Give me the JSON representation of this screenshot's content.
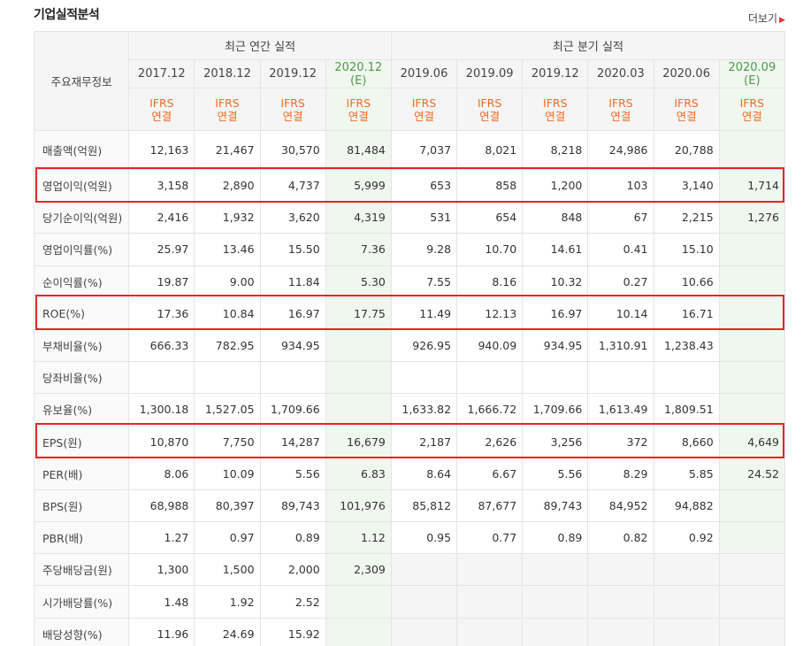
{
  "title": "기업실적분석",
  "more_label": "더보기",
  "table": {
    "key_header": "주요재무정보",
    "group_annual": "최근 연간 실적",
    "group_quarter": "최근 분기 실적",
    "periods": [
      {
        "line1": "2017.12",
        "line2": "",
        "est": false
      },
      {
        "line1": "2018.12",
        "line2": "",
        "est": false
      },
      {
        "line1": "2019.12",
        "line2": "",
        "est": false
      },
      {
        "line1": "2020.12",
        "line2": "(E)",
        "est": true
      },
      {
        "line1": "2019.06",
        "line2": "",
        "est": false
      },
      {
        "line1": "2019.09",
        "line2": "",
        "est": false
      },
      {
        "line1": "2019.12",
        "line2": "",
        "est": false
      },
      {
        "line1": "2020.03",
        "line2": "",
        "est": false
      },
      {
        "line1": "2020.06",
        "line2": "",
        "est": false
      },
      {
        "line1": "2020.09",
        "line2": "(E)",
        "est": true
      }
    ],
    "basis_line1": "IFRS",
    "basis_line2": "연결",
    "rows": [
      {
        "name": "sales",
        "label": "매출액(억원)",
        "highlight": false,
        "values": [
          "12,163",
          "21,467",
          "30,570",
          "81,484",
          "7,037",
          "8,021",
          "8,218",
          "24,986",
          "20,788",
          ""
        ]
      },
      {
        "name": "operating-profit",
        "label": "영업이익(억원)",
        "highlight": true,
        "values": [
          "3,158",
          "2,890",
          "4,737",
          "5,999",
          "653",
          "858",
          "1,200",
          "103",
          "3,140",
          "1,714"
        ]
      },
      {
        "name": "net-income",
        "label": "당기순이익(억원)",
        "highlight": false,
        "values": [
          "2,416",
          "1,932",
          "3,620",
          "4,319",
          "531",
          "654",
          "848",
          "67",
          "2,215",
          "1,276"
        ]
      },
      {
        "name": "operating-margin",
        "label": "영업이익률(%)",
        "highlight": false,
        "values": [
          "25.97",
          "13.46",
          "15.50",
          "7.36",
          "9.28",
          "10.70",
          "14.61",
          "0.41",
          "15.10",
          ""
        ]
      },
      {
        "name": "net-margin",
        "label": "순이익률(%)",
        "highlight": false,
        "values": [
          "19.87",
          "9.00",
          "11.84",
          "5.30",
          "7.55",
          "8.16",
          "10.32",
          "0.27",
          "10.66",
          ""
        ]
      },
      {
        "name": "roe",
        "label": "ROE(%)",
        "highlight": true,
        "values": [
          "17.36",
          "10.84",
          "16.97",
          "17.75",
          "11.49",
          "12.13",
          "16.97",
          "10.14",
          "16.71",
          ""
        ]
      },
      {
        "name": "debt-ratio",
        "label": "부채비율(%)",
        "highlight": false,
        "values": [
          "666.33",
          "782.95",
          "934.95",
          "",
          "926.95",
          "940.09",
          "934.95",
          "1,310.91",
          "1,238.43",
          ""
        ]
      },
      {
        "name": "quick-ratio",
        "label": "당좌비율(%)",
        "highlight": false,
        "values": [
          "",
          "",
          "",
          "",
          "",
          "",
          "",
          "",
          "",
          ""
        ]
      },
      {
        "name": "reserve-ratio",
        "label": "유보율(%)",
        "highlight": false,
        "values": [
          "1,300.18",
          "1,527.05",
          "1,709.66",
          "",
          "1,633.82",
          "1,666.72",
          "1,709.66",
          "1,613.49",
          "1,809.51",
          ""
        ]
      },
      {
        "name": "eps",
        "label": "EPS(원)",
        "highlight": true,
        "values": [
          "10,870",
          "7,750",
          "14,287",
          "16,679",
          "2,187",
          "2,626",
          "3,256",
          "372",
          "8,660",
          "4,649"
        ]
      },
      {
        "name": "per",
        "label": "PER(배)",
        "highlight": false,
        "values": [
          "8.06",
          "10.09",
          "5.56",
          "6.83",
          "8.64",
          "6.67",
          "5.56",
          "8.29",
          "5.85",
          "24.52"
        ]
      },
      {
        "name": "bps",
        "label": "BPS(원)",
        "highlight": false,
        "values": [
          "68,988",
          "80,397",
          "89,743",
          "101,976",
          "85,812",
          "87,677",
          "89,743",
          "84,952",
          "94,882",
          ""
        ]
      },
      {
        "name": "pbr",
        "label": "PBR(배)",
        "highlight": false,
        "values": [
          "1.27",
          "0.97",
          "0.89",
          "1.12",
          "0.95",
          "0.77",
          "0.89",
          "0.82",
          "0.92",
          ""
        ]
      },
      {
        "name": "dps",
        "label": "주당배당금(원)",
        "highlight": false,
        "quarter_blank": true,
        "values": [
          "1,300",
          "1,500",
          "2,000",
          "2,309",
          "",
          "",
          "",
          "",
          "",
          ""
        ]
      },
      {
        "name": "dividend-yield",
        "label": "시가배당률(%)",
        "highlight": false,
        "quarter_blank": true,
        "values": [
          "1.48",
          "1.92",
          "2.52",
          "",
          "",
          "",
          "",
          "",
          "",
          ""
        ]
      },
      {
        "name": "payout-ratio",
        "label": "배당성향(%)",
        "highlight": false,
        "quarter_blank": true,
        "values": [
          "11.96",
          "24.69",
          "15.92",
          "",
          "",
          "",
          "",
          "",
          "",
          ""
        ]
      }
    ]
  },
  "colors": {
    "highlight_border": "#e52424",
    "ifrs_text": "#f26b22",
    "estimate_text": "#4b9b45",
    "estimate_bg": "#f0f7ef"
  }
}
